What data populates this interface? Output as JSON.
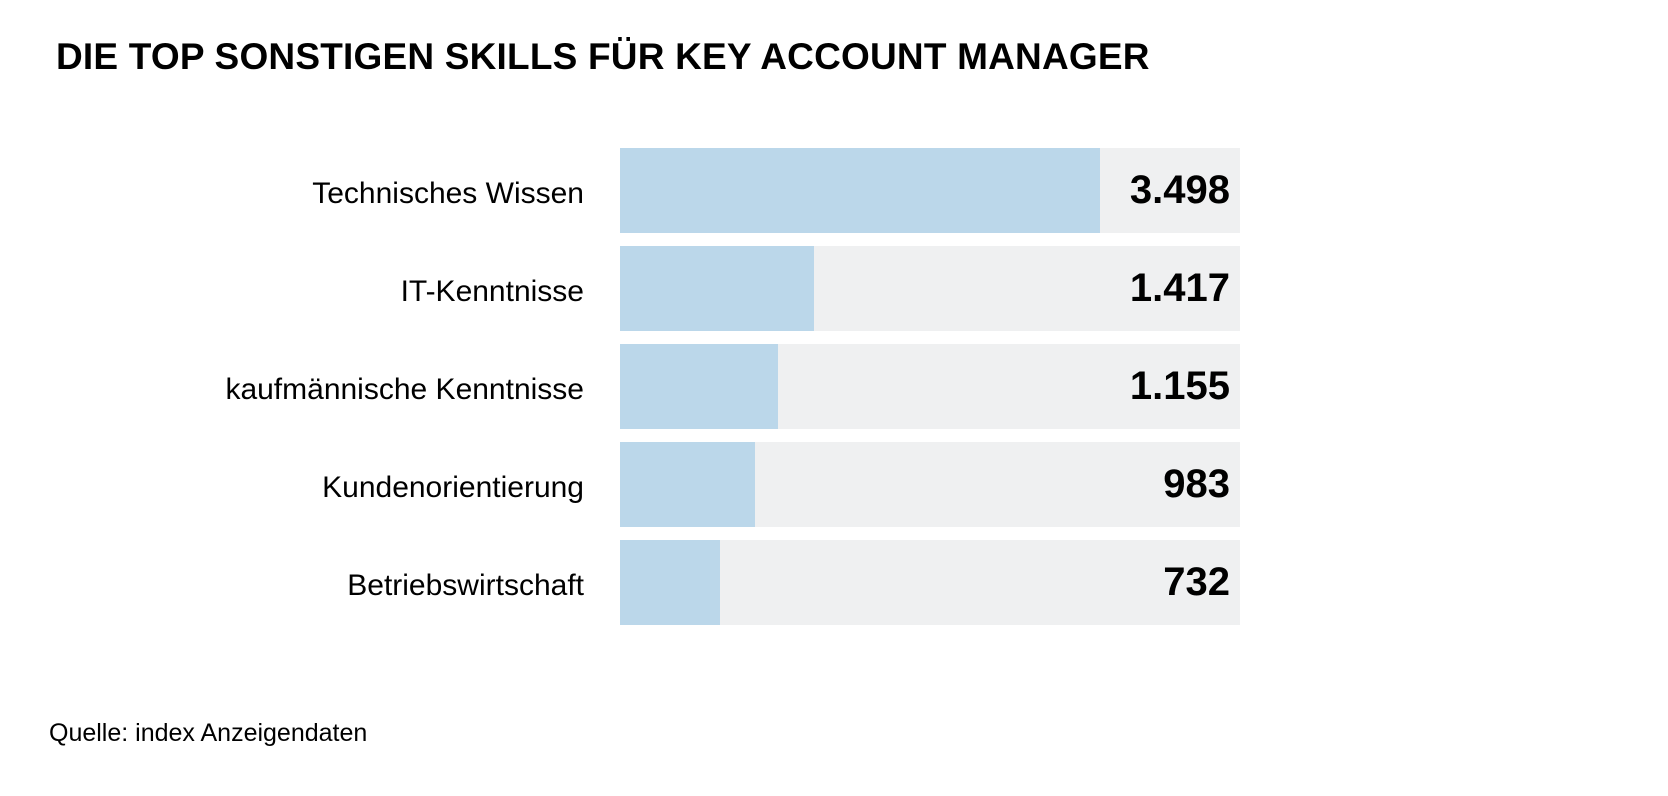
{
  "title": "DIE TOP SONSTIGEN SKILLS FÜR KEY ACCOUNT MANAGER",
  "source": "Quelle: index Anzeigendaten",
  "colors": {
    "bar": "#bbd7ea",
    "track": "#eff0f1",
    "text": "#000000"
  },
  "rows": [
    {
      "label": "Technisches Wissen",
      "value_text": "3.498",
      "value": 3498
    },
    {
      "label": "IT-Kenntnisse",
      "value_text": "1.417",
      "value": 1417
    },
    {
      "label": "kaufmännische Kenntnisse",
      "value_text": "1.155",
      "value": 1155
    },
    {
      "label": "Kundenorientierung",
      "value_text": "983",
      "value": 983
    },
    {
      "label": "Betriebswirtschaft",
      "value_text": "732",
      "value": 732
    }
  ],
  "chart_data": {
    "type": "bar",
    "orientation": "horizontal",
    "title": "DIE TOP SONSTIGEN SKILLS FÜR KEY ACCOUNT MANAGER",
    "categories": [
      "Technisches Wissen",
      "IT-Kenntnisse",
      "kaufmännische Kenntnisse",
      "Kundenorientierung",
      "Betriebswirtschaft"
    ],
    "values": [
      3498,
      1417,
      1155,
      983,
      732
    ],
    "xlabel": "",
    "ylabel": "",
    "grid": false,
    "legend": null,
    "data_labels": true,
    "annotations": [
      "Quelle: index Anzeigendaten"
    ]
  }
}
